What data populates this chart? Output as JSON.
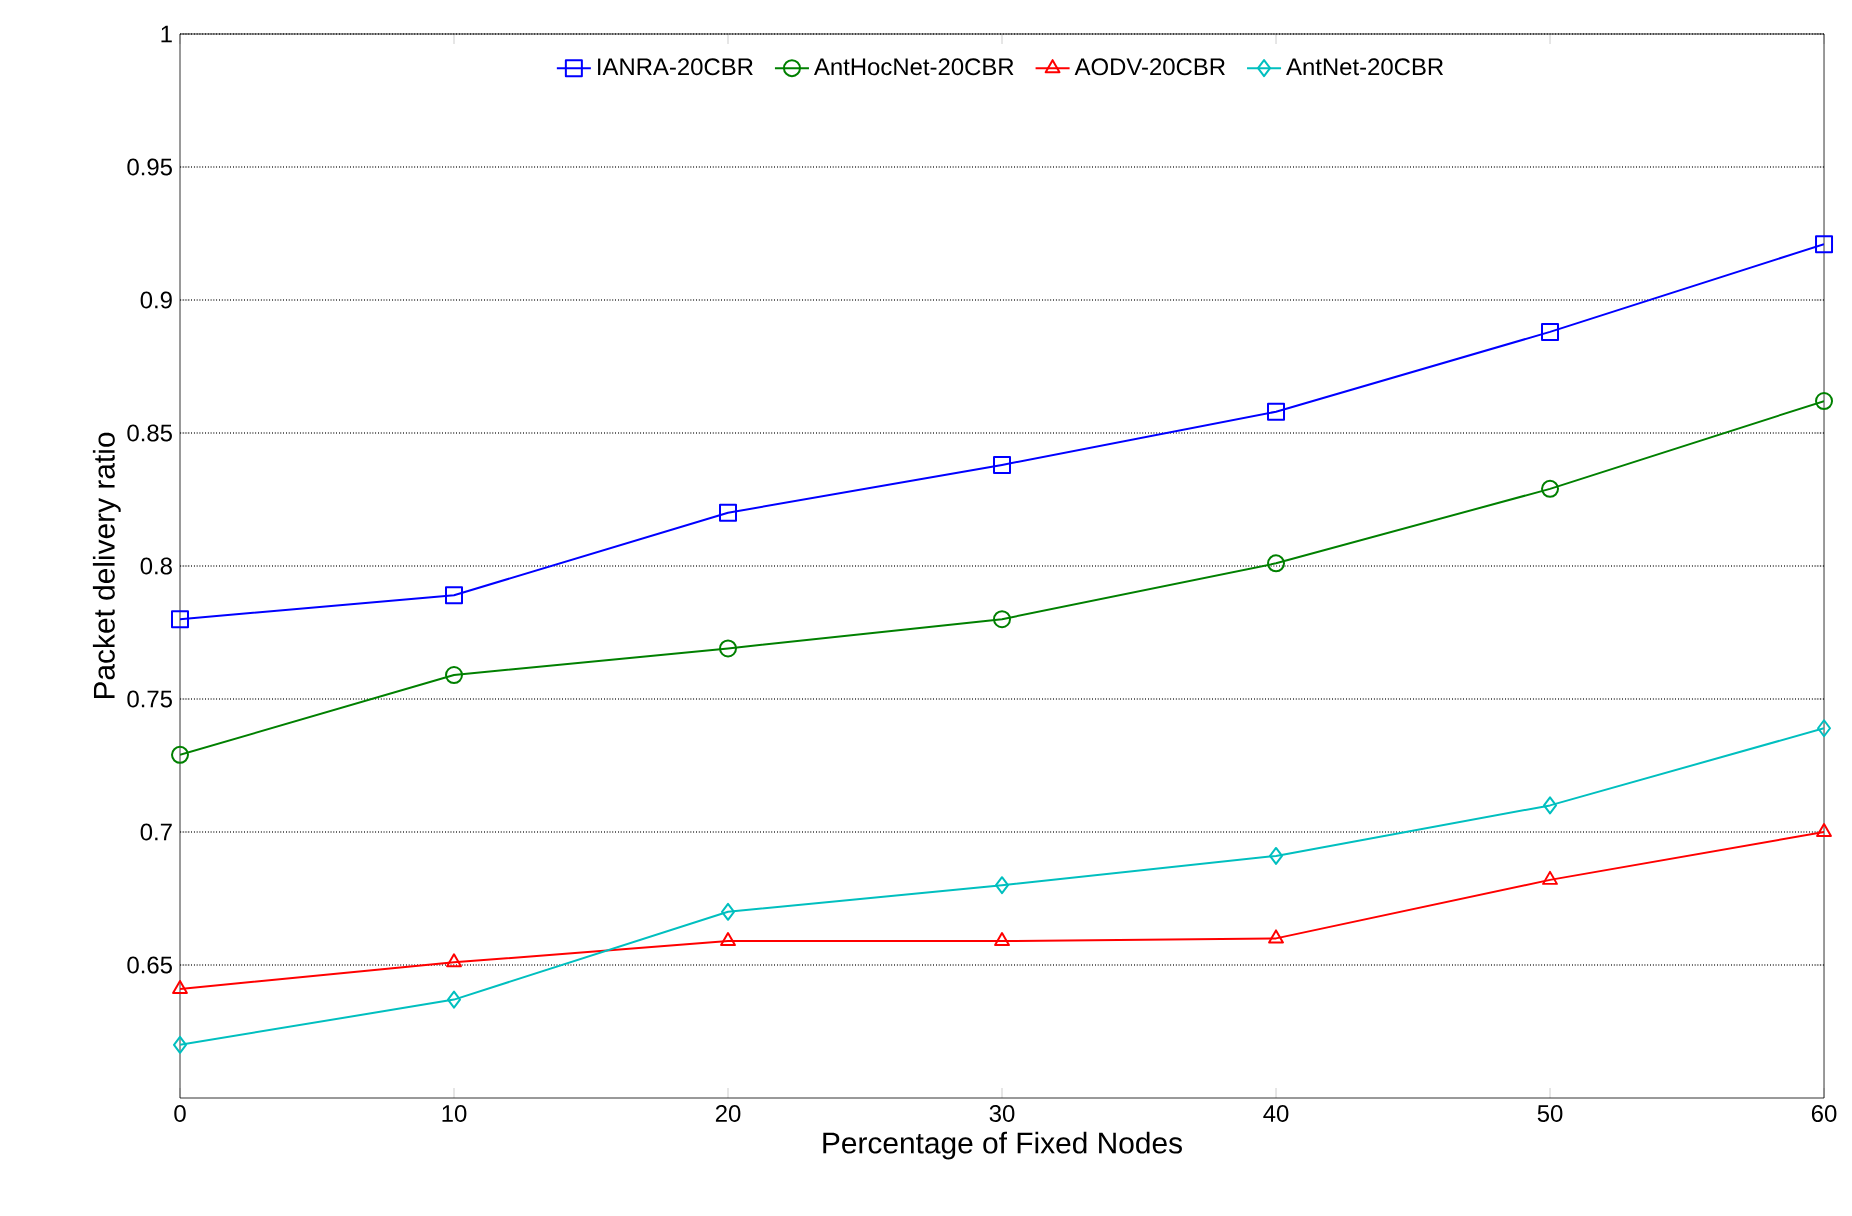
{
  "chart_data": {
    "type": "line",
    "xlabel": "Percentage of Fixed Nodes",
    "ylabel": "Packet delivery ratio",
    "x": [
      0,
      10,
      20,
      30,
      40,
      50,
      60
    ],
    "series": [
      {
        "name": "IANRA-20CBR",
        "color": "#0000ff",
        "marker": "square",
        "values": [
          0.78,
          0.789,
          0.82,
          0.838,
          0.858,
          0.888,
          0.921
        ]
      },
      {
        "name": "AntHocNet-20CBR",
        "color": "#008000",
        "marker": "circle",
        "values": [
          0.729,
          0.759,
          0.769,
          0.78,
          0.801,
          0.829,
          0.862
        ]
      },
      {
        "name": "AODV-20CBR",
        "color": "#ff0000",
        "marker": "triangle",
        "values": [
          0.641,
          0.651,
          0.659,
          0.659,
          0.66,
          0.682,
          0.7
        ]
      },
      {
        "name": "AntNet-20CBR",
        "color": "#00bfbf",
        "marker": "diamond",
        "values": [
          0.62,
          0.637,
          0.67,
          0.68,
          0.691,
          0.71,
          0.739
        ]
      }
    ],
    "xlim": [
      0,
      60
    ],
    "xticks": [
      0,
      10,
      20,
      30,
      40,
      50,
      60
    ],
    "ylim": [
      0.6,
      1
    ],
    "yticks": [
      0.65,
      0.7,
      0.75,
      0.8,
      0.85,
      0.9,
      0.95,
      1
    ],
    "grid": "y",
    "legend": "top",
    "line_style": "solid"
  }
}
